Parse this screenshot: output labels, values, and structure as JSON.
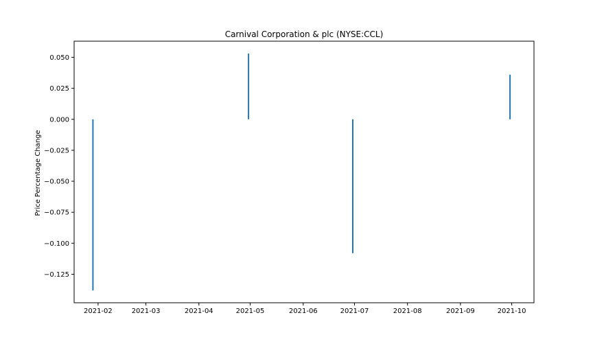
{
  "chart_data": {
    "type": "bar",
    "title": "Carnival Corporation & plc (NYSE:CCL)",
    "xlabel": "",
    "ylabel": "Price Percentage Change",
    "x": [
      "2021-01-29",
      "2021-04-30",
      "2021-06-30",
      "2021-09-30"
    ],
    "values": [
      -0.138,
      0.053,
      -0.108,
      0.036
    ],
    "xlim": [
      "2021-01-18",
      "2021-10-14"
    ],
    "ylim": [
      -0.148,
      0.063
    ],
    "x_ticks": [
      "2021-02",
      "2021-03",
      "2021-04",
      "2021-05",
      "2021-06",
      "2021-07",
      "2021-08",
      "2021-09",
      "2021-10"
    ],
    "y_ticks": [
      0.05,
      0.025,
      0.0,
      -0.025,
      -0.05,
      -0.075,
      -0.1,
      -0.125
    ],
    "y_tick_labels": [
      "0.050",
      "0.025",
      "0.000",
      "−0.025",
      "−0.050",
      "−0.075",
      "−0.100",
      "−0.125"
    ],
    "grid": false,
    "bar_color": "#1f77b4"
  }
}
